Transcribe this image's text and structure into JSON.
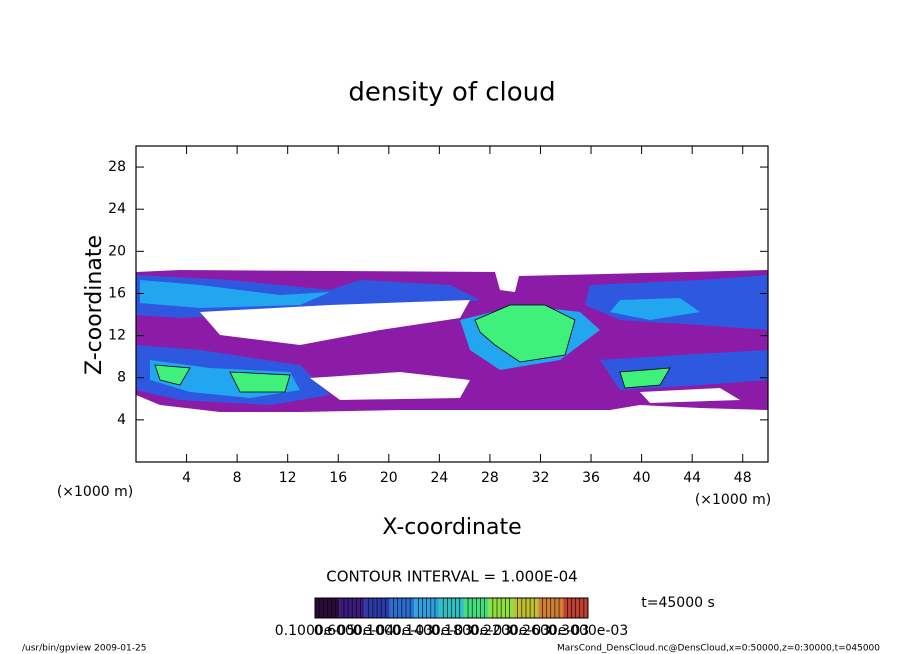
{
  "chart_data": {
    "type": "contour",
    "title": "density of cloud",
    "xlabel": "X-coordinate",
    "ylabel": "Z-coordinate",
    "x_unit_label": "(×1000 m)",
    "y_unit_label": "(×1000 m)",
    "xlim": [
      0,
      50
    ],
    "ylim": [
      0,
      30
    ],
    "xticks": [
      4,
      8,
      12,
      16,
      20,
      24,
      28,
      32,
      36,
      40,
      44,
      48
    ],
    "yticks": [
      4,
      8,
      12,
      16,
      20,
      24,
      28
    ],
    "contour_note": "CONTOUR INTERVAL = 1.000E-04",
    "time_label": "t=45000 s",
    "colorbar_labels": [
      "0.1000e-05",
      "0.6000e-04",
      "0.1000e-03",
      "0.1400e-03",
      "0.1800e-03",
      "0.2200e-03",
      "0.2600e-03",
      "0.3000e-03"
    ],
    "colorbar_colors": [
      "#2a0a3a",
      "#3a1a7a",
      "#2a3aaa",
      "#2a70d0",
      "#30a0e0",
      "#30c0c0",
      "#40e080",
      "#90e040",
      "#c0c030",
      "#d08030",
      "#c04030"
    ],
    "footer_left": "/usr/bin/gpview  2009-01-25",
    "footer_right": "MarsCond_DensCloud.nc@DensCloud,x=0:50000,z=0:30000,t=045000"
  }
}
